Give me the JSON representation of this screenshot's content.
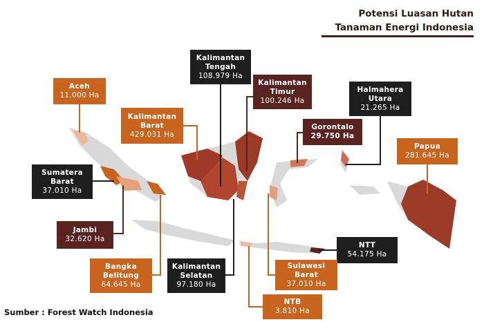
{
  "header": {
    "title": [
      "Potensi Luasan Hutan",
      "Tanaman Energi Indonesia"
    ]
  },
  "regions": [
    {
      "name": [
        "Aceh"
      ],
      "value": "11.000 Ha"
    },
    {
      "name": [
        "Kalimantan",
        "Barat"
      ],
      "value": "429.031 Ha"
    },
    {
      "name": [
        "Kalimantan",
        "Tengah"
      ],
      "value": "108.979 Ha"
    },
    {
      "name": [
        "Kalimantan",
        "Timur"
      ],
      "value": "100.246 Ha"
    },
    {
      "name": [
        "Halmahera",
        "Utara"
      ],
      "value": "21.265 Ha"
    },
    {
      "name": [
        "Gorontalo"
      ],
      "value": "29.750 Ha"
    },
    {
      "name": [
        "Papua"
      ],
      "value": "281.645 Ha"
    },
    {
      "name": [
        "Sumatera",
        "Barat"
      ],
      "value": "37.010 Ha"
    },
    {
      "name": [
        "Jambi"
      ],
      "value": "32.620 Ha"
    },
    {
      "name": [
        "Bangka",
        "Belitung"
      ],
      "value": "64.645 Ha"
    },
    {
      "name": [
        "Kalimantan",
        "Selatan"
      ],
      "value": "97.180 Ha"
    },
    {
      "name": [
        "NTT"
      ],
      "value": "54.175 Ha"
    },
    {
      "name": [
        "Sulawesi",
        "Barat"
      ],
      "value": "37.010 Ha"
    },
    {
      "name": [
        "NTB"
      ],
      "value": "3.810 Ha"
    }
  ],
  "source": "Sumber : Forest Watch Indonesia"
}
